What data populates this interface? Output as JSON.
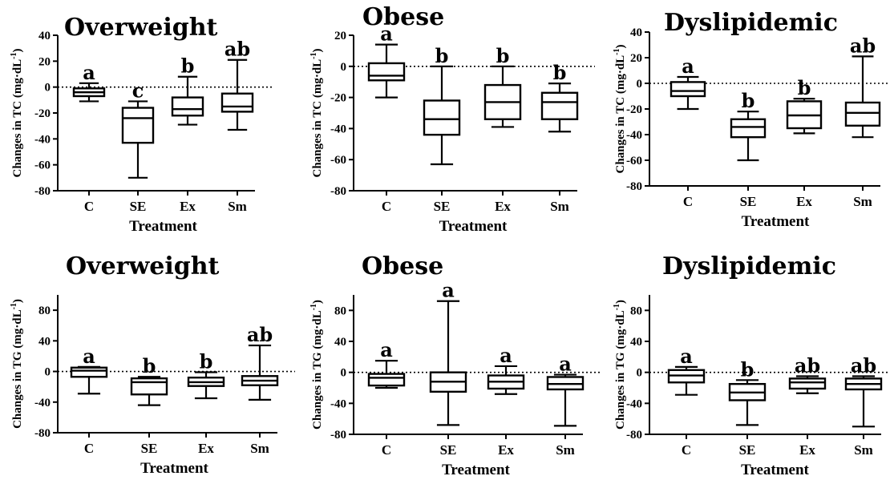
{
  "chart_data": [
    {
      "type": "box",
      "title": "Overweight",
      "ylabel": "Changes in TC (mg·dL",
      "ylabel_sup": "-1",
      "ylabel_close": ")",
      "xlabel": "Treatment",
      "ylim": [
        -80,
        40
      ],
      "yticks": [
        -80,
        -60,
        -40,
        -20,
        0,
        20,
        40
      ],
      "reference_line": 0,
      "categories": [
        "C",
        "SE",
        "Ex",
        "Sm"
      ],
      "boxes": [
        {
          "min": -11,
          "q1": -7,
          "median": -4,
          "q3": -1,
          "max": 3,
          "label": "a"
        },
        {
          "min": -70,
          "q1": -43,
          "median": -24,
          "q3": -16,
          "max": -11,
          "label": "c"
        },
        {
          "min": -29,
          "q1": -22,
          "median": -17,
          "q3": -8,
          "max": 8,
          "label": "b"
        },
        {
          "min": -33,
          "q1": -19,
          "median": -15,
          "q3": -5,
          "max": 21,
          "label": "ab"
        }
      ]
    },
    {
      "type": "box",
      "title": "Obese",
      "ylabel": "Changes in TC (mg·dL",
      "ylabel_sup": "-1",
      "ylabel_close": ")",
      "xlabel": "Treatment",
      "ylim": [
        -80,
        20
      ],
      "yticks": [
        -80,
        -60,
        -40,
        -20,
        0,
        20
      ],
      "reference_line": 0,
      "categories": [
        "C",
        "SE",
        "Ex",
        "Sm"
      ],
      "boxes": [
        {
          "min": -20,
          "q1": -9,
          "median": -6,
          "q3": 2,
          "max": 14,
          "label": "a"
        },
        {
          "min": -63,
          "q1": -44,
          "median": -34,
          "q3": -22,
          "max": 0,
          "label": "b"
        },
        {
          "min": -39,
          "q1": -34,
          "median": -23,
          "q3": -12,
          "max": 0,
          "label": "b"
        },
        {
          "min": -42,
          "q1": -34,
          "median": -23,
          "q3": -17,
          "max": -11,
          "label": "b"
        }
      ]
    },
    {
      "type": "box",
      "title": "Dyslipidemic",
      "ylabel": "Changes in TC (mg·dL",
      "ylabel_sup": "-1",
      "ylabel_close": ")",
      "xlabel": "Treatment",
      "ylim": [
        -80,
        40
      ],
      "yticks": [
        -80,
        -60,
        -40,
        -20,
        0,
        20,
        40
      ],
      "reference_line": 0,
      "categories": [
        "C",
        "SE",
        "Ex",
        "Sm"
      ],
      "boxes": [
        {
          "min": -20,
          "q1": -10,
          "median": -6,
          "q3": 1,
          "max": 5,
          "label": "a"
        },
        {
          "min": -60,
          "q1": -42,
          "median": -34,
          "q3": -28,
          "max": -22,
          "label": "b"
        },
        {
          "min": -39,
          "q1": -35,
          "median": -25,
          "q3": -14,
          "max": -12,
          "label": "b"
        },
        {
          "min": -42,
          "q1": -33,
          "median": -23,
          "q3": -15,
          "max": 21,
          "label": "ab"
        }
      ]
    },
    {
      "type": "box",
      "title": "Overweight",
      "ylabel": "Changes in TG (mg·dL",
      "ylabel_sup": "-1",
      "ylabel_close": ")",
      "xlabel": "Treatment",
      "ylim": [
        -80,
        100
      ],
      "yticks": [
        -80,
        -40,
        0,
        40,
        80
      ],
      "reference_line": 0,
      "categories": [
        "C",
        "SE",
        "Ex",
        "Sm"
      ],
      "boxes": [
        {
          "min": -29,
          "q1": -7,
          "median": 1,
          "q3": 5,
          "max": 6,
          "label": "a"
        },
        {
          "min": -44,
          "q1": -30,
          "median": -14,
          "q3": -9,
          "max": -7,
          "label": "b"
        },
        {
          "min": -35,
          "q1": -19,
          "median": -14,
          "q3": -8,
          "max": -1,
          "label": "b"
        },
        {
          "min": -37,
          "q1": -18,
          "median": -12,
          "q3": -6,
          "max": 34,
          "label": "ab"
        }
      ]
    },
    {
      "type": "box",
      "title": "Obese",
      "ylabel": "Changes in TG (mg·dL",
      "ylabel_sup": "-1",
      "ylabel_close": ")",
      "xlabel": "Treatment",
      "ylim": [
        -80,
        100
      ],
      "yticks": [
        -80,
        -40,
        0,
        40,
        80
      ],
      "reference_line": 0,
      "categories": [
        "C",
        "SE",
        "Ex",
        "Sm"
      ],
      "boxes": [
        {
          "min": -20,
          "q1": -17,
          "median": -7,
          "q3": -2,
          "max": 15,
          "label": "a"
        },
        {
          "min": -68,
          "q1": -25,
          "median": -12,
          "q3": 0,
          "max": 92,
          "label": "a"
        },
        {
          "min": -28,
          "q1": -21,
          "median": -12,
          "q3": -4,
          "max": 8,
          "label": "a"
        },
        {
          "min": -69,
          "q1": -22,
          "median": -15,
          "q3": -6,
          "max": -3,
          "label": "a"
        }
      ]
    },
    {
      "type": "box",
      "title": "Dyslipidemic",
      "ylabel": "Changes in TG (mg·dL",
      "ylabel_sup": "-1",
      "ylabel_close": ")",
      "xlabel": "Treatment",
      "ylim": [
        -80,
        100
      ],
      "yticks": [
        -80,
        -40,
        0,
        40,
        80
      ],
      "reference_line": 0,
      "categories": [
        "C",
        "SE",
        "Ex",
        "Sm"
      ],
      "boxes": [
        {
          "min": -29,
          "q1": -13,
          "median": -4,
          "q3": 3,
          "max": 7,
          "label": "a"
        },
        {
          "min": -68,
          "q1": -36,
          "median": -26,
          "q3": -15,
          "max": -10,
          "label": "b"
        },
        {
          "min": -27,
          "q1": -21,
          "median": -13,
          "q3": -8,
          "max": -5,
          "label": "ab"
        },
        {
          "min": -70,
          "q1": -22,
          "median": -15,
          "q3": -8,
          "max": -5,
          "label": "ab"
        }
      ]
    }
  ]
}
